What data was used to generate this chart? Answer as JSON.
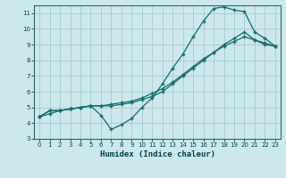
{
  "title": "",
  "xlabel": "Humidex (Indice chaleur)",
  "bg_color": "#cce8e8",
  "grid_color": "#aacccc",
  "line_color": "#1a6b6b",
  "xlim": [
    -0.5,
    23.5
  ],
  "ylim": [
    3,
    11.5
  ],
  "xticks": [
    0,
    1,
    2,
    3,
    4,
    5,
    6,
    7,
    8,
    9,
    10,
    11,
    12,
    13,
    14,
    15,
    16,
    17,
    18,
    19,
    20,
    21,
    22,
    23
  ],
  "yticks": [
    3,
    4,
    5,
    6,
    7,
    8,
    9,
    10,
    11
  ],
  "line1_x": [
    0,
    1,
    2,
    3,
    4,
    5,
    6,
    7,
    8,
    9,
    10,
    11,
    12,
    13,
    14,
    15,
    16,
    17,
    18,
    19,
    20,
    21,
    22,
    23
  ],
  "line1_y": [
    4.4,
    4.8,
    4.8,
    4.9,
    5.0,
    5.1,
    4.5,
    3.6,
    3.9,
    4.3,
    5.0,
    5.6,
    6.5,
    7.5,
    8.4,
    9.5,
    10.5,
    11.3,
    11.4,
    11.2,
    11.1,
    9.8,
    9.4,
    8.9
  ],
  "line2_x": [
    0,
    1,
    2,
    3,
    4,
    5,
    6,
    7,
    8,
    9,
    10,
    11,
    12,
    13,
    14,
    15,
    16,
    17,
    18,
    19,
    20,
    21,
    22,
    23
  ],
  "line2_y": [
    4.4,
    4.8,
    4.8,
    4.9,
    5.0,
    5.1,
    5.1,
    5.1,
    5.2,
    5.3,
    5.5,
    5.7,
    6.0,
    6.5,
    7.0,
    7.5,
    8.0,
    8.5,
    9.0,
    9.4,
    9.8,
    9.3,
    9.0,
    8.9
  ],
  "line3_x": [
    0,
    1,
    2,
    3,
    4,
    5,
    6,
    7,
    8,
    9,
    10,
    11,
    12,
    13,
    14,
    15,
    16,
    17,
    18,
    19,
    20,
    21,
    22,
    23
  ],
  "line3_y": [
    4.4,
    4.6,
    4.8,
    4.9,
    5.0,
    5.1,
    5.1,
    5.2,
    5.3,
    5.4,
    5.6,
    5.9,
    6.2,
    6.6,
    7.1,
    7.6,
    8.1,
    8.5,
    8.9,
    9.2,
    9.5,
    9.3,
    9.1,
    8.9
  ]
}
